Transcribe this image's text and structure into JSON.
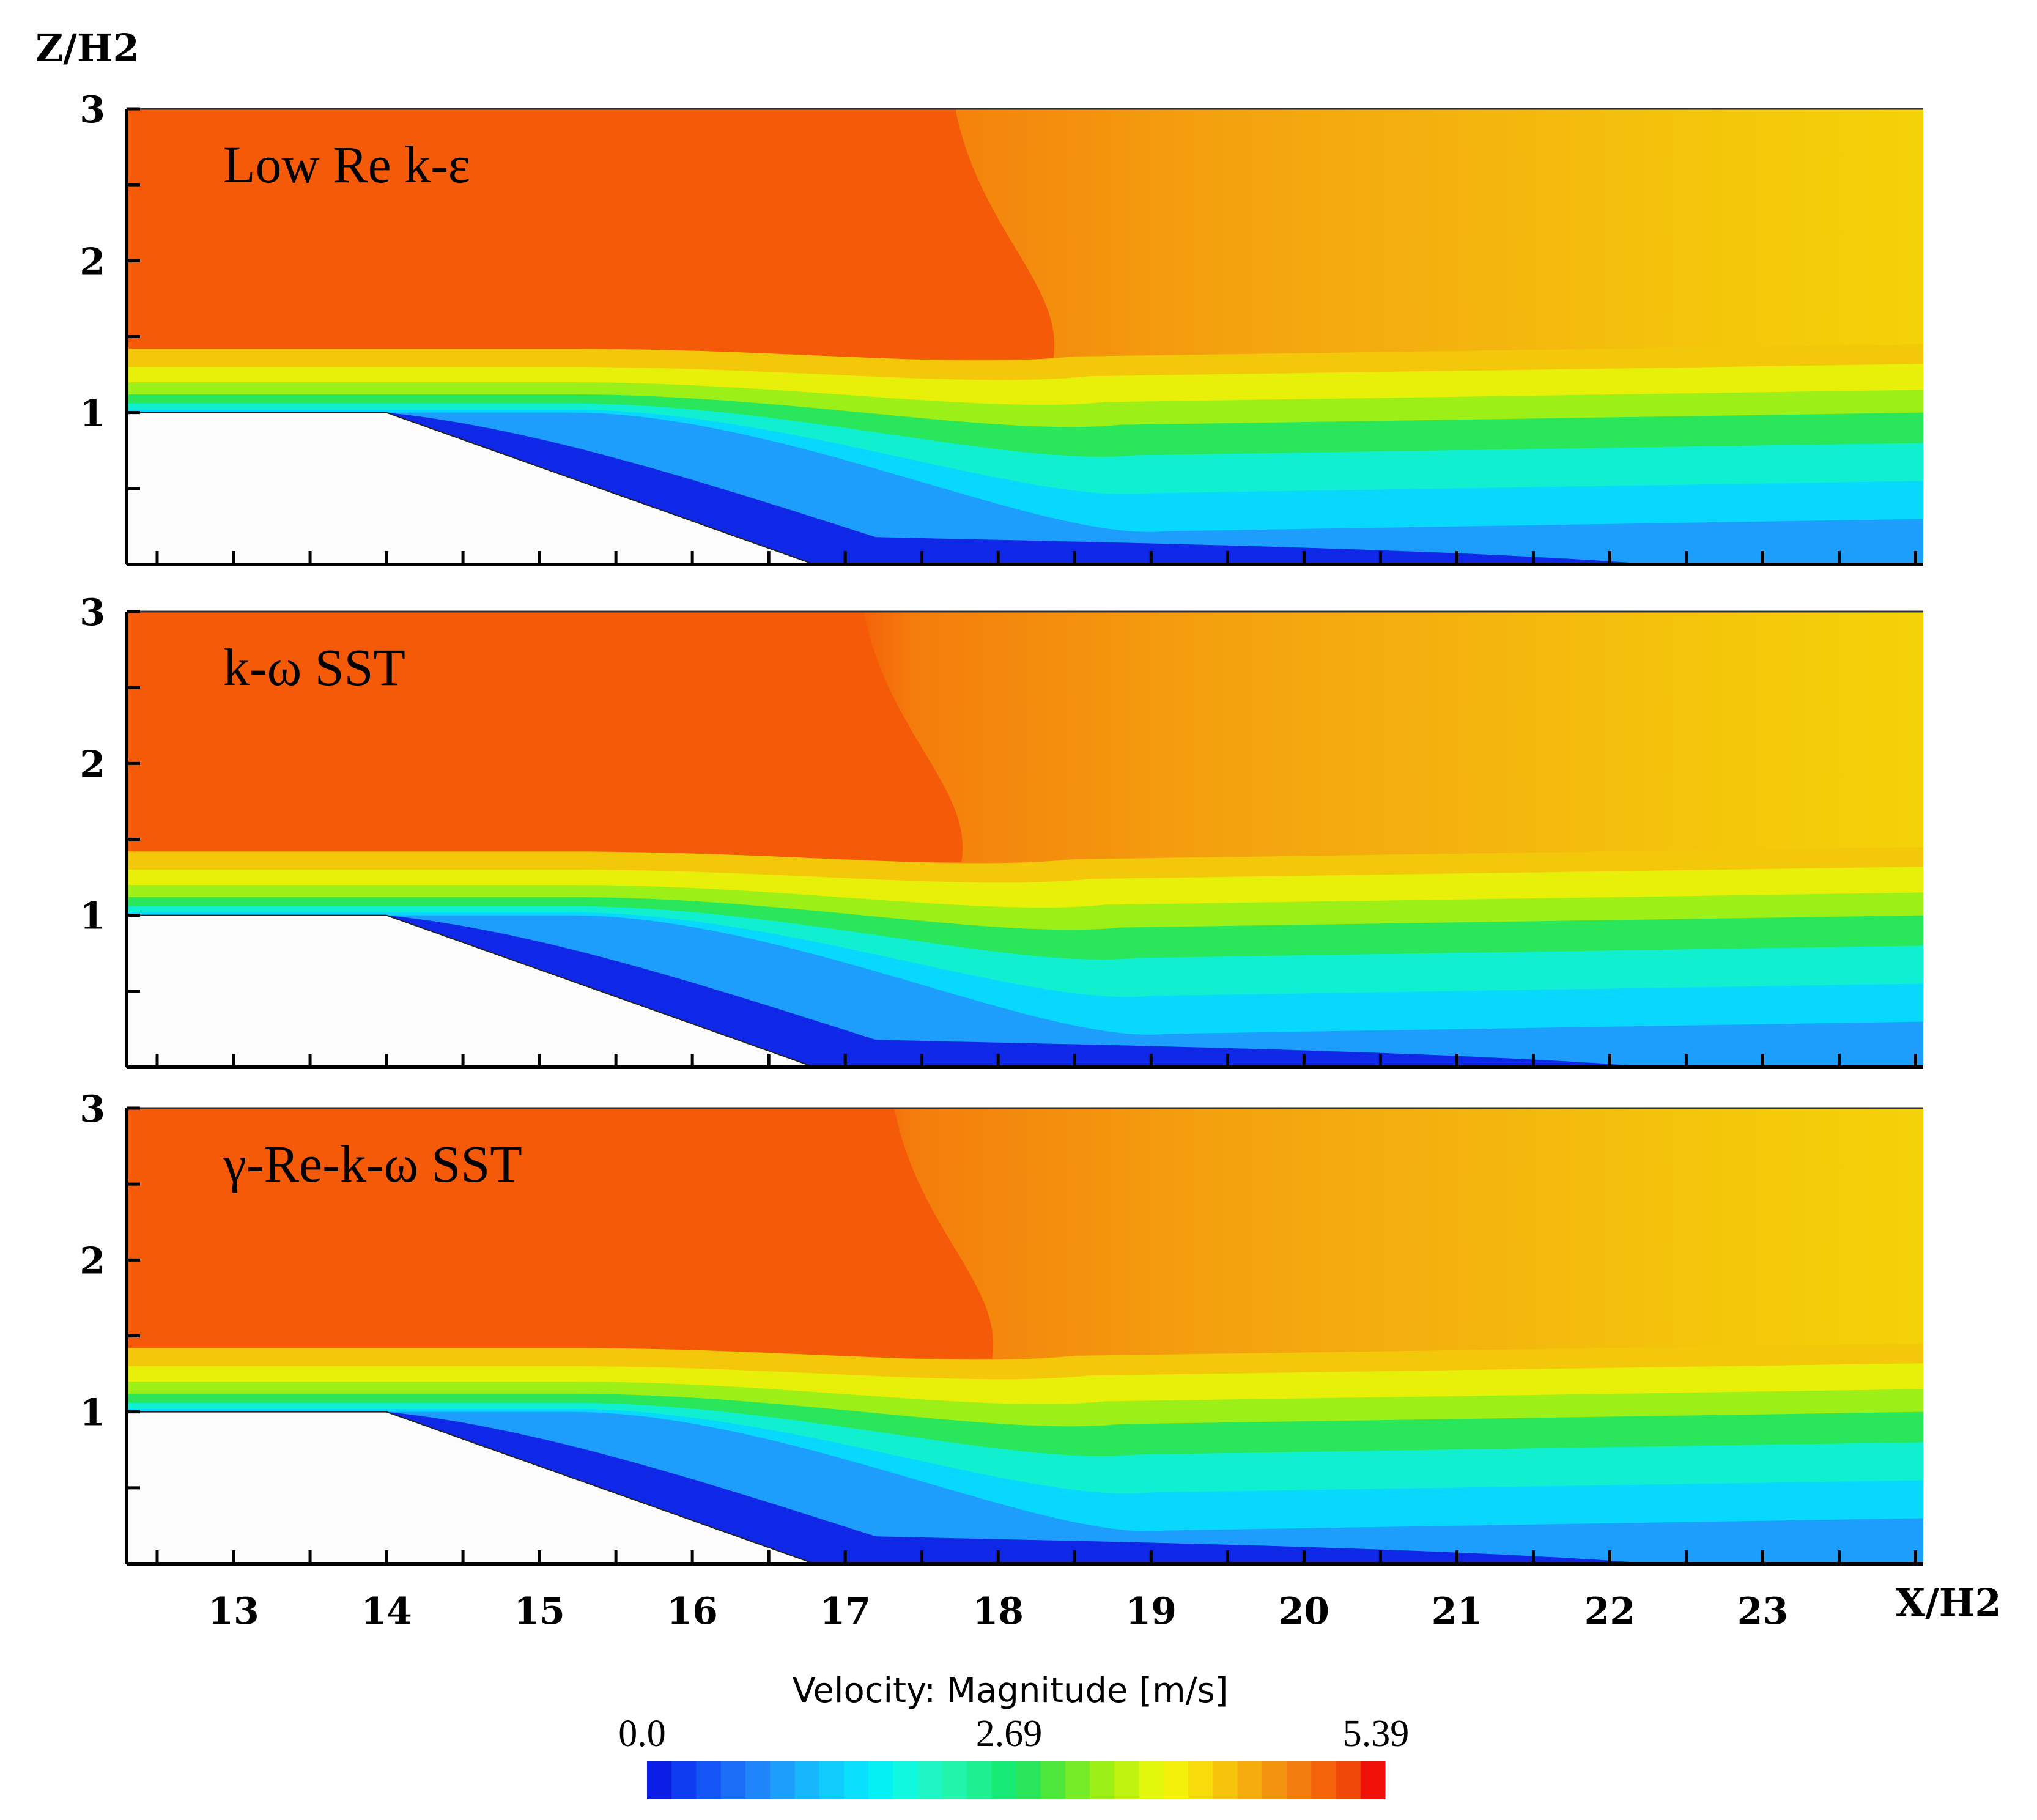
{
  "chart_data": {
    "type": "contour",
    "title": "",
    "xlabel": "X/H2",
    "ylabel": "Z/H2",
    "xlim": [
      12.3,
      24.05
    ],
    "ylim": [
      0,
      3
    ],
    "x_ticks": [
      13,
      14,
      15,
      16,
      17,
      18,
      19,
      20,
      21,
      22,
      23
    ],
    "y_ticks": [
      1,
      2,
      3
    ],
    "panels": [
      {
        "label": "Low Re k-ε",
        "model": "low-re-k-epsilon"
      },
      {
        "label": "k-ω SST",
        "model": "k-omega-sst"
      },
      {
        "label": "γ-Re-k-ω SST",
        "model": "gamma-re-k-omega-sst"
      }
    ],
    "geometry": {
      "hill_top_height": 1.0,
      "hill_crest_end_x": 14.0,
      "hill_foot_x": 16.8
    },
    "colorbar": {
      "title": "Velocity: Magnitude [m/s]",
      "min_label": "0.0",
      "mid_label": "2.69",
      "max_label": "5.39",
      "min": 0.0,
      "mid": 2.69,
      "max": 5.39,
      "colors": [
        "#0a1ee6",
        "#0f3cf0",
        "#1456f5",
        "#1a6ef8",
        "#1e86fa",
        "#1e9efc",
        "#18b6fd",
        "#10ccfd",
        "#08e0fd",
        "#05f0f5",
        "#10f8e0",
        "#1ef6c6",
        "#22f4ac",
        "#1ef092",
        "#18ea76",
        "#2ae65a",
        "#4ee83c",
        "#76ec28",
        "#9cf018",
        "#c0f410",
        "#e0f60a",
        "#f4f00a",
        "#f8dc0a",
        "#f6c40c",
        "#f4ac0e",
        "#f29410",
        "#f27c0e",
        "#f4620a",
        "#f04808",
        "#f01208"
      ]
    }
  }
}
